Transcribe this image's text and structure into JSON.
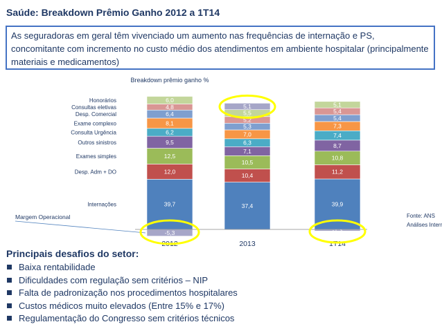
{
  "header": {
    "title": "Saúde: Breakdown Prêmio Ganho 2012 a 1T14",
    "subtitle": "As seguradoras em geral têm vivenciado um aumento nas frequências de internação e PS, concomitante com incremento no custo médio dos atendimentos em ambiente hospitalar (principalmente materiais e medicamentos)"
  },
  "chart_data": {
    "type": "bar",
    "stacked": true,
    "title": "Breakdown prêmio ganho %",
    "categories": [
      "2012",
      "2013",
      "1T14"
    ],
    "series": [
      {
        "name": "Margem Operacional",
        "values": [
          -5.3,
          0,
          -1.3
        ],
        "labels": [
          "-5,3",
          "",
          "-1,3"
        ],
        "color": "#a6a6c8"
      },
      {
        "name": "Internações",
        "values": [
          39.7,
          37.4,
          39.9
        ],
        "labels": [
          "39,7",
          "37,4",
          "39,9"
        ],
        "color": "#4f81bd"
      },
      {
        "name": "Desp. Adm + DO",
        "values": [
          12.0,
          10.4,
          11.2
        ],
        "labels": [
          "12,0",
          "10,4",
          "11,2"
        ],
        "color": "#c0504d"
      },
      {
        "name": "Exames simples",
        "values": [
          12.5,
          10.5,
          10.8
        ],
        "labels": [
          "12,5",
          "10,5",
          "10,8"
        ],
        "color": "#9bbb59"
      },
      {
        "name": "Outros sinistros",
        "values": [
          9.5,
          7.1,
          8.7
        ],
        "labels": [
          "9,5",
          "7,1",
          "8,7"
        ],
        "color": "#8064a2"
      },
      {
        "name": "Consulta Urgência",
        "values": [
          6.2,
          6.3,
          7.4
        ],
        "labels": [
          "6,2",
          "6,3",
          "7,4"
        ],
        "color": "#4bacc6"
      },
      {
        "name": "Exame complexo",
        "values": [
          8.1,
          7.0,
          7.3
        ],
        "labels": [
          "8,1",
          "7,0",
          "7,3"
        ],
        "color": "#f79646"
      },
      {
        "name": "Desp. Comercial",
        "values": [
          6.4,
          5.3,
          5.4
        ],
        "labels": [
          "6,4",
          "5,3",
          "5,4"
        ],
        "color": "#7f9fcf"
      },
      {
        "name": "Consultas eletivas",
        "values": [
          4.8,
          5.2,
          5.4
        ],
        "labels": [
          "4,8",
          "5,2",
          "5,4"
        ],
        "color": "#d99694"
      },
      {
        "name": "Honorários",
        "values": [
          6.0,
          5.5,
          5.1
        ],
        "labels": [
          "6,0",
          "5,5",
          "5,1"
        ],
        "color": "#c3d69b"
      },
      {
        "name": "",
        "values": [
          0,
          5.1,
          0
        ],
        "labels": [
          "",
          "5,1",
          ""
        ],
        "color": "#a6a6c8"
      }
    ],
    "source": [
      "Fonte: ANS",
      "Análises Internas"
    ],
    "highlights": [
      "2012 Margem Operacional",
      "2013 top",
      "1T14 Margem Operacional"
    ],
    "highlight_color": "#ffff00",
    "grid": false,
    "legend": "left"
  },
  "challenges": {
    "heading": "Principais desafios do setor:",
    "items": [
      "Baixa rentabilidade",
      "Dificuldades com regulação sem critérios – NIP",
      "Falta de padronização nos procedimentos hospitalares",
      "Custos médicos muito elevados (Entre 15% e 17%)",
      "Regulamentação do Congresso sem critérios técnicos"
    ]
  }
}
